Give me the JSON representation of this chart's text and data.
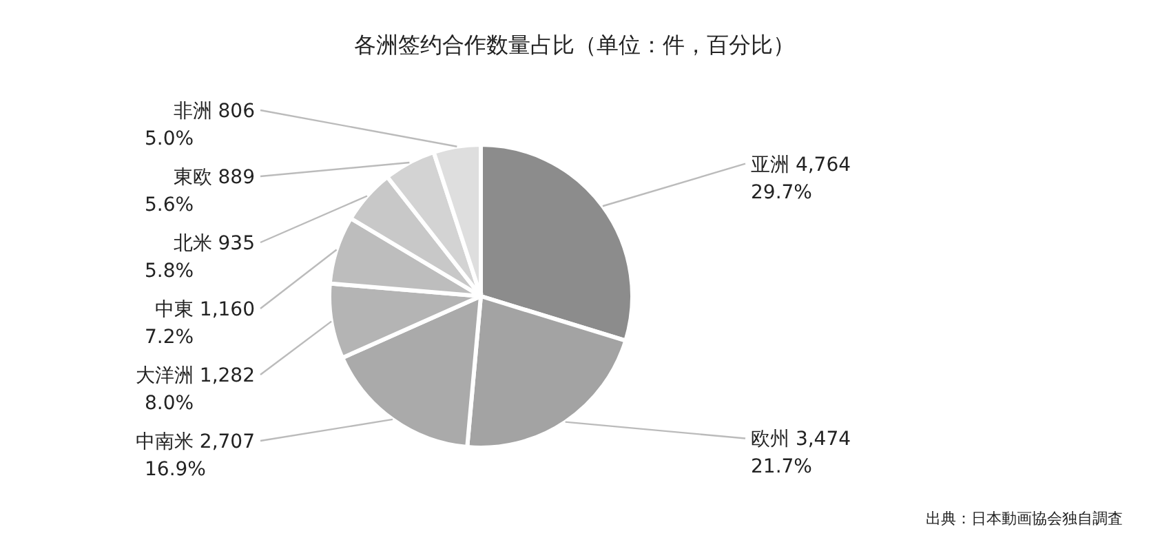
{
  "chart_data": {
    "type": "pie",
    "title": "各洲签约合作数量占比（单位：件，百分比）",
    "categories": [
      "亚洲",
      "欧州",
      "中南米",
      "大洋洲",
      "中東",
      "北米",
      "東欧",
      "非洲"
    ],
    "values": [
      4764,
      3474,
      2707,
      1282,
      1160,
      935,
      889,
      806
    ],
    "value_labels": [
      "4,764\n29.7%",
      "3,474\n21.7%",
      "2,707\n16.9%",
      "1,282\n8.0%",
      "1,160\n7.2%",
      "935\n5.8%",
      "889\n5.6%",
      "806\n5.0%"
    ],
    "colors": [
      "#8c8c8c",
      "#a3a3a3",
      "#aaaaaa",
      "#b4b4b4",
      "#bdbdbd",
      "#c8c8c8",
      "#d3d3d3",
      "#dedede"
    ],
    "annotations": [
      "出典：日本動画協会独自調査"
    ],
    "legend": false
  }
}
